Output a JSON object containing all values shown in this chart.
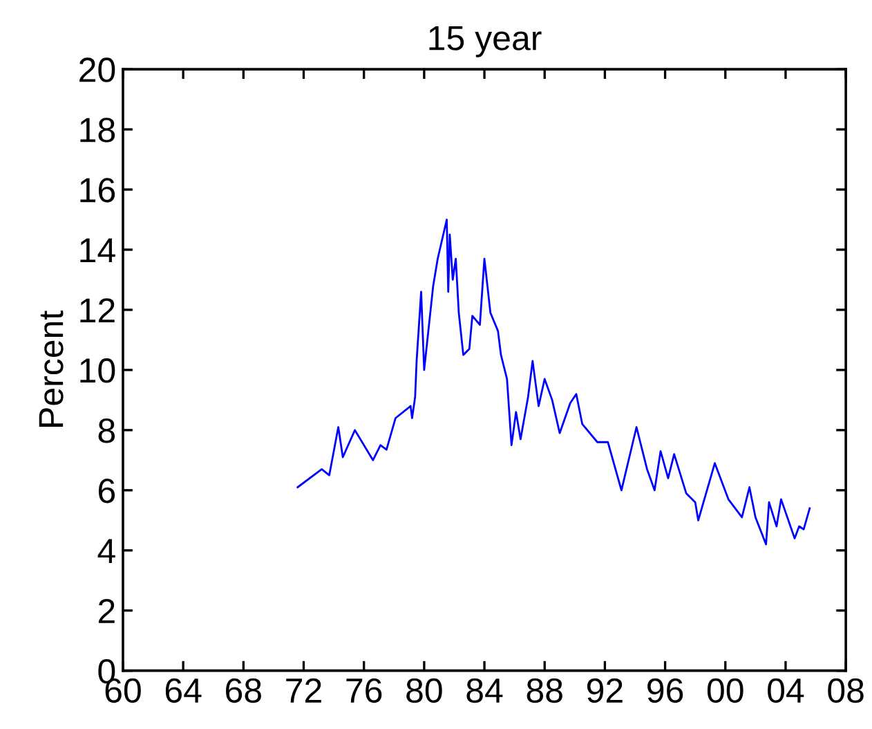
{
  "chart_data": {
    "type": "line",
    "title": "15 year",
    "ylabel": "Percent",
    "x": [
      1971.6,
      1973.2,
      1973.7,
      1974.3,
      1974.6,
      1975.4,
      1976.6,
      1977.1,
      1977.5,
      1978.1,
      1979.1,
      1979.2,
      1979.4,
      1979.5,
      1979.8,
      1980.0,
      1980.6,
      1980.9,
      1981.5,
      1981.6,
      1981.7,
      1981.9,
      1982.1,
      1982.3,
      1982.6,
      1983.0,
      1983.2,
      1983.7,
      1984.0,
      1984.4,
      1984.9,
      1985.1,
      1985.5,
      1985.8,
      1986.1,
      1986.4,
      1986.9,
      1987.2,
      1987.6,
      1988.0,
      1988.5,
      1989.0,
      1989.7,
      1990.1,
      1990.5,
      1991.5,
      1992.2,
      1993.1,
      1994.1,
      1994.8,
      1995.3,
      1995.7,
      1996.2,
      1996.6,
      1997.4,
      1998.0,
      1998.2,
      1999.3,
      2000.2,
      2001.1,
      2001.6,
      2002.0,
      2002.7,
      2002.9,
      2003.4,
      2003.7,
      2004.6,
      2004.9,
      2005.2,
      2005.6
    ],
    "series": [
      {
        "color": "#0000ff",
        "values": [
          6.1,
          6.7,
          6.5,
          8.1,
          7.1,
          8.0,
          7.0,
          7.5,
          7.35,
          8.4,
          8.8,
          8.4,
          9.1,
          10.3,
          12.6,
          10.0,
          12.8,
          13.7,
          15.0,
          12.6,
          14.5,
          13.0,
          13.7,
          11.9,
          10.5,
          10.7,
          11.8,
          11.5,
          13.7,
          11.9,
          11.3,
          10.5,
          9.7,
          7.5,
          8.6,
          7.7,
          9.1,
          10.3,
          8.8,
          9.7,
          9.0,
          7.9,
          8.9,
          9.2,
          8.2,
          7.6,
          7.6,
          6.0,
          8.1,
          6.7,
          6.0,
          7.3,
          6.4,
          7.2,
          5.9,
          5.6,
          5.0,
          6.9,
          5.7,
          5.1,
          6.1,
          5.1,
          4.2,
          5.6,
          4.8,
          5.7,
          4.4,
          4.8,
          4.7,
          5.4
        ]
      }
    ],
    "xlim": [
      1960,
      2008
    ],
    "xticks": [
      {
        "value": 1960,
        "label": "60"
      },
      {
        "value": 1964,
        "label": "64"
      },
      {
        "value": 1968,
        "label": "68"
      },
      {
        "value": 1972,
        "label": "72"
      },
      {
        "value": 1976,
        "label": "76"
      },
      {
        "value": 1980,
        "label": "80"
      },
      {
        "value": 1984,
        "label": "84"
      },
      {
        "value": 1988,
        "label": "88"
      },
      {
        "value": 1992,
        "label": "92"
      },
      {
        "value": 1996,
        "label": "96"
      },
      {
        "value": 2000,
        "label": "00"
      },
      {
        "value": 2004,
        "label": "04"
      },
      {
        "value": 2008,
        "label": "08"
      }
    ],
    "ylim": [
      0,
      20
    ],
    "yticks": [
      0,
      2,
      4,
      6,
      8,
      10,
      12,
      14,
      16,
      18,
      20
    ],
    "grid": false,
    "legend": false,
    "marker": "none",
    "line_style": "solid"
  }
}
